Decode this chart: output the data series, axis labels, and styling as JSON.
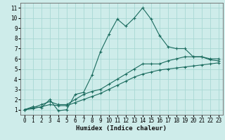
{
  "xlabel": "Humidex (Indice chaleur)",
  "background_color": "#ceecea",
  "grid_color": "#a8d8d4",
  "line_color": "#1a6b5e",
  "xlim": [
    -0.5,
    23.5
  ],
  "ylim": [
    0.5,
    11.5
  ],
  "xticks": [
    0,
    1,
    2,
    3,
    4,
    5,
    6,
    7,
    8,
    9,
    10,
    11,
    12,
    13,
    14,
    15,
    16,
    17,
    18,
    19,
    20,
    21,
    22,
    23
  ],
  "yticks": [
    1,
    2,
    3,
    4,
    5,
    6,
    7,
    8,
    9,
    10,
    11
  ],
  "line1_x": [
    0,
    1,
    2,
    3,
    4,
    5,
    6,
    7,
    8,
    9,
    10,
    11,
    12,
    13,
    14,
    15,
    16,
    17,
    18,
    19,
    20,
    21,
    22,
    23
  ],
  "line1_y": [
    1.0,
    1.3,
    1.2,
    2.0,
    0.9,
    1.0,
    2.5,
    2.7,
    4.4,
    6.7,
    8.4,
    9.9,
    9.2,
    10.0,
    11.0,
    9.9,
    8.3,
    7.2,
    7.0,
    7.0,
    6.2,
    6.2,
    5.9,
    5.8
  ],
  "line2_x": [
    0,
    1,
    2,
    3,
    4,
    5,
    6,
    7,
    8,
    9,
    10,
    11,
    12,
    13,
    14,
    15,
    16,
    17,
    18,
    19,
    20,
    21,
    22,
    23
  ],
  "line2_y": [
    1.0,
    1.2,
    1.5,
    1.8,
    1.5,
    1.5,
    2.0,
    2.5,
    2.8,
    3.0,
    3.5,
    4.0,
    4.5,
    5.0,
    5.5,
    5.5,
    5.5,
    5.8,
    6.0,
    6.2,
    6.2,
    6.2,
    6.0,
    6.0
  ],
  "line3_x": [
    0,
    1,
    2,
    3,
    4,
    5,
    6,
    7,
    8,
    9,
    10,
    11,
    12,
    13,
    14,
    15,
    16,
    17,
    18,
    19,
    20,
    21,
    22,
    23
  ],
  "line3_y": [
    1.0,
    1.1,
    1.3,
    1.5,
    1.4,
    1.4,
    1.7,
    2.0,
    2.3,
    2.6,
    3.0,
    3.4,
    3.8,
    4.2,
    4.5,
    4.7,
    4.9,
    5.0,
    5.1,
    5.2,
    5.3,
    5.4,
    5.5,
    5.6
  ],
  "tick_fontsize": 5.5,
  "xlabel_fontsize": 6.5
}
